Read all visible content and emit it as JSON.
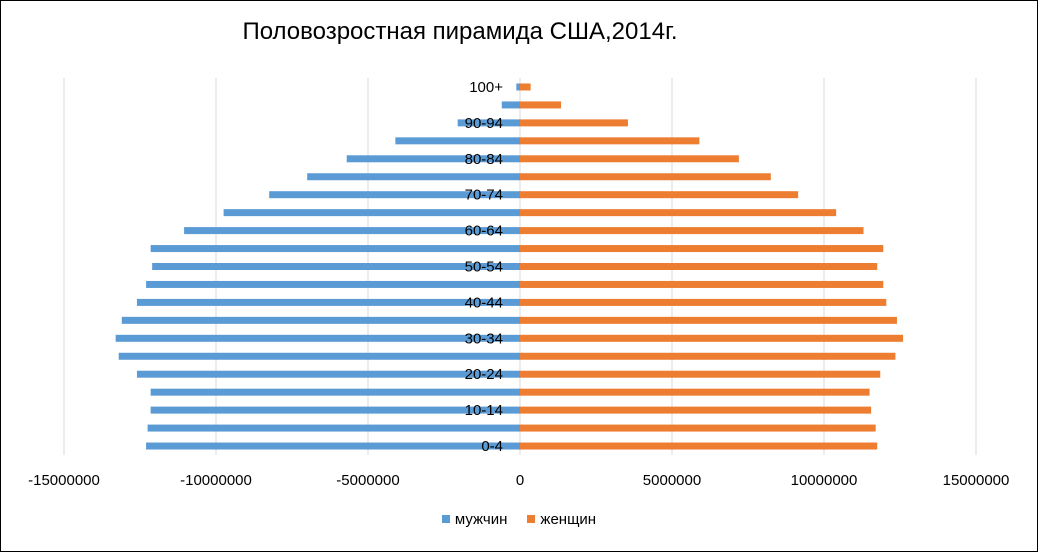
{
  "chart_data": {
    "type": "bar",
    "orientation": "horizontal",
    "title": "Половозростная пирамида США,2014г.",
    "categories": [
      "0-4",
      "5-9",
      "10-14",
      "15-19",
      "20-24",
      "25-29",
      "30-34",
      "35-39",
      "40-44",
      "45-49",
      "50-54",
      "55-59",
      "60-64",
      "65-69",
      "70-74",
      "75-79",
      "80-84",
      "85-89",
      "90-94",
      "95-99",
      "100+"
    ],
    "category_tick_labels": [
      "0-4",
      "",
      "10-14",
      "",
      "20-24",
      "",
      "30-34",
      "",
      "40-44",
      "",
      "50-54",
      "",
      "60-64",
      "",
      "70-74",
      "",
      "80-84",
      "",
      "90-94",
      "",
      "100+"
    ],
    "series": [
      {
        "name": "мужчин",
        "color": "#5b9bd5",
        "values": [
          -12300000,
          -12250000,
          -12150000,
          -12150000,
          -12600000,
          -13200000,
          -13300000,
          -13100000,
          -12600000,
          -12300000,
          -12100000,
          -12150000,
          -11050000,
          -9750000,
          -8250000,
          -7000000,
          -5700000,
          -4100000,
          -2050000,
          -600000,
          -120000
        ]
      },
      {
        "name": "женщин",
        "color": "#ed7d31",
        "values": [
          11750000,
          11700000,
          11550000,
          11500000,
          11850000,
          12350000,
          12600000,
          12400000,
          12050000,
          11950000,
          11750000,
          11950000,
          11300000,
          10400000,
          9150000,
          8250000,
          7200000,
          5900000,
          3550000,
          1350000,
          350000
        ]
      }
    ],
    "xlim": [
      -15000000,
      15000000
    ],
    "xticks": [
      -15000000,
      -10000000,
      -5000000,
      0,
      5000000,
      10000000,
      15000000
    ],
    "xtick_labels": [
      "-15000000",
      "-10000000",
      "-5000000",
      "0",
      "5000000",
      "10000000",
      "15000000"
    ],
    "grid": "vertical",
    "legend_position": "bottom"
  }
}
